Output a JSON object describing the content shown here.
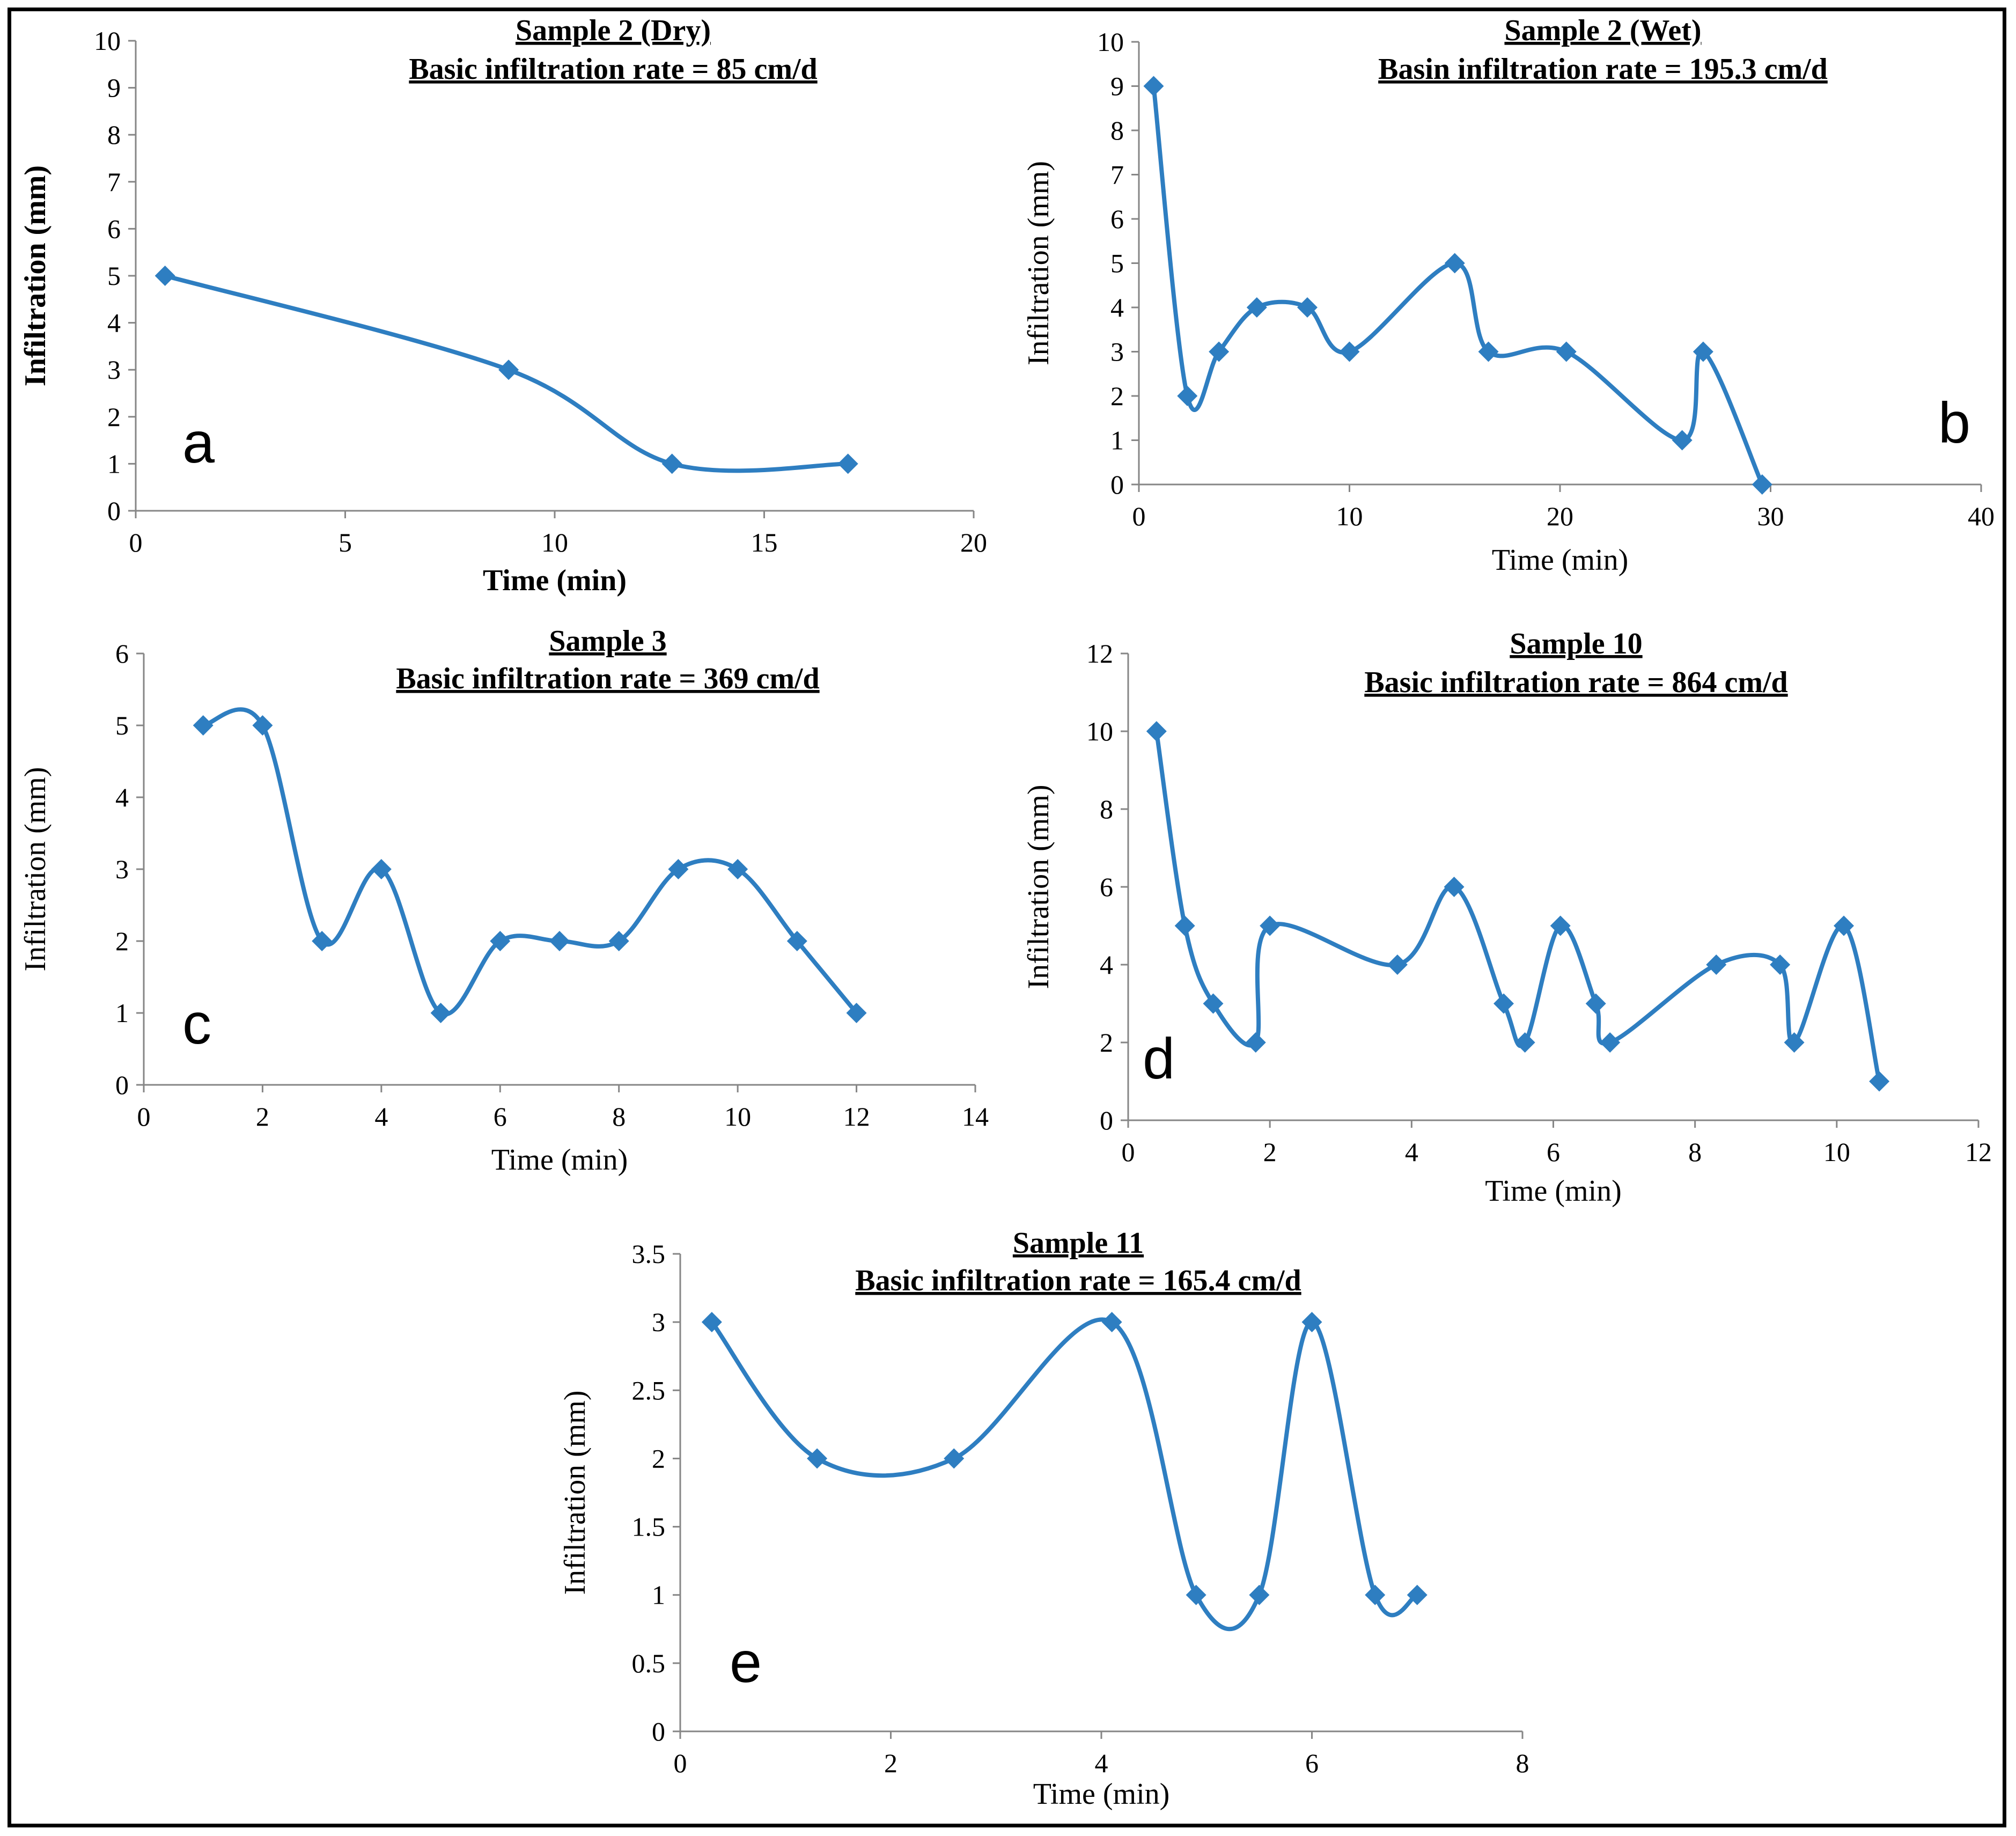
{
  "colors": {
    "series": "#2E7EC1",
    "axis": "#868686",
    "text": "#000000",
    "frame": "#000000"
  },
  "chart_data": [
    {
      "id": "a",
      "type": "line",
      "title": "Sample 2 (Dry)",
      "subtitle": "Basic infiltration  rate = 85 cm/d",
      "xlabel": "Time (min)",
      "ylabel": "Infiltration (mm)",
      "bold_labels": true,
      "xlim": [
        0,
        20
      ],
      "ylim": [
        0,
        10
      ],
      "xticks": [
        0,
        5,
        10,
        15,
        20
      ],
      "yticks": [
        0,
        1,
        2,
        3,
        4,
        5,
        6,
        7,
        8,
        9,
        10
      ],
      "x": [
        0.7,
        8.9,
        12.8,
        17
      ],
      "y": [
        5,
        3,
        1,
        1
      ],
      "panel_label": "a"
    },
    {
      "id": "b",
      "type": "line",
      "title": "Sample 2 (Wet)",
      "subtitle": "Basin infiltration  rate = 195.3 cm/d",
      "xlabel": "Time (min)",
      "ylabel": "Infiltration (mm)",
      "bold_labels": false,
      "xlim": [
        0,
        40
      ],
      "ylim": [
        0,
        10
      ],
      "xticks": [
        0,
        10,
        20,
        30,
        40
      ],
      "yticks": [
        0,
        1,
        2,
        3,
        4,
        5,
        6,
        7,
        8,
        9,
        10
      ],
      "x": [
        0.7,
        2.3,
        3.8,
        5.6,
        8,
        10,
        15,
        16.6,
        20.3,
        25.8,
        26.8,
        29.6
      ],
      "y": [
        9,
        2,
        3,
        4,
        4,
        3,
        5,
        3,
        3,
        1,
        3,
        0
      ],
      "panel_label": "b"
    },
    {
      "id": "c",
      "type": "line",
      "title": "Sample 3",
      "subtitle": "Basic infiltration  rate = 369 cm/d",
      "xlabel": "Time (min)",
      "ylabel": "Infiltration (mm)",
      "bold_labels": false,
      "xlim": [
        0,
        14
      ],
      "ylim": [
        0,
        6
      ],
      "xticks": [
        0,
        2,
        4,
        6,
        8,
        10,
        12,
        14
      ],
      "yticks": [
        0,
        1,
        2,
        3,
        4,
        5,
        6
      ],
      "x": [
        1,
        2,
        3,
        4,
        5,
        6,
        7,
        8,
        9,
        10,
        11,
        12
      ],
      "y": [
        5,
        5,
        2,
        3,
        1,
        2,
        2,
        2,
        3,
        3,
        2,
        1
      ],
      "panel_label": "c"
    },
    {
      "id": "d",
      "type": "line",
      "title": "Sample 10",
      "subtitle": "Basic infiltration  rate = 864 cm/d",
      "xlabel": "Time (min)",
      "ylabel": "Infiltration (mm)",
      "bold_labels": false,
      "xlim": [
        0,
        12
      ],
      "ylim": [
        0,
        12
      ],
      "xticks": [
        0,
        2,
        4,
        6,
        8,
        10,
        12
      ],
      "yticks": [
        0,
        2,
        4,
        6,
        8,
        10,
        12
      ],
      "x": [
        0.4,
        0.8,
        1.2,
        1.8,
        2,
        3.8,
        4.6,
        5.3,
        5.6,
        6.1,
        6.6,
        6.8,
        8.3,
        9.2,
        9.4,
        10.1,
        10.6
      ],
      "y": [
        10,
        5,
        3,
        2,
        5,
        4,
        6,
        3,
        2,
        5,
        3,
        2,
        4,
        4,
        2,
        5,
        1
      ],
      "panel_label": "d"
    },
    {
      "id": "e",
      "type": "line",
      "title": "Sample 11",
      "subtitle": "Basic infiltration  rate = 165.4 cm/d",
      "xlabel": "Time (min)",
      "ylabel": "Infiltration (mm)",
      "bold_labels": false,
      "xlim": [
        0,
        8
      ],
      "ylim": [
        0,
        3.5
      ],
      "xticks": [
        0,
        2,
        4,
        6,
        8
      ],
      "yticks": [
        0,
        0.5,
        1,
        1.5,
        2,
        2.5,
        3,
        3.5
      ],
      "x": [
        0.3,
        1.3,
        2.6,
        4.1,
        4.9,
        5.5,
        6,
        6.6,
        7
      ],
      "y": [
        3,
        2,
        2,
        3,
        1,
        1,
        3,
        1,
        1
      ],
      "panel_label": "e"
    }
  ]
}
